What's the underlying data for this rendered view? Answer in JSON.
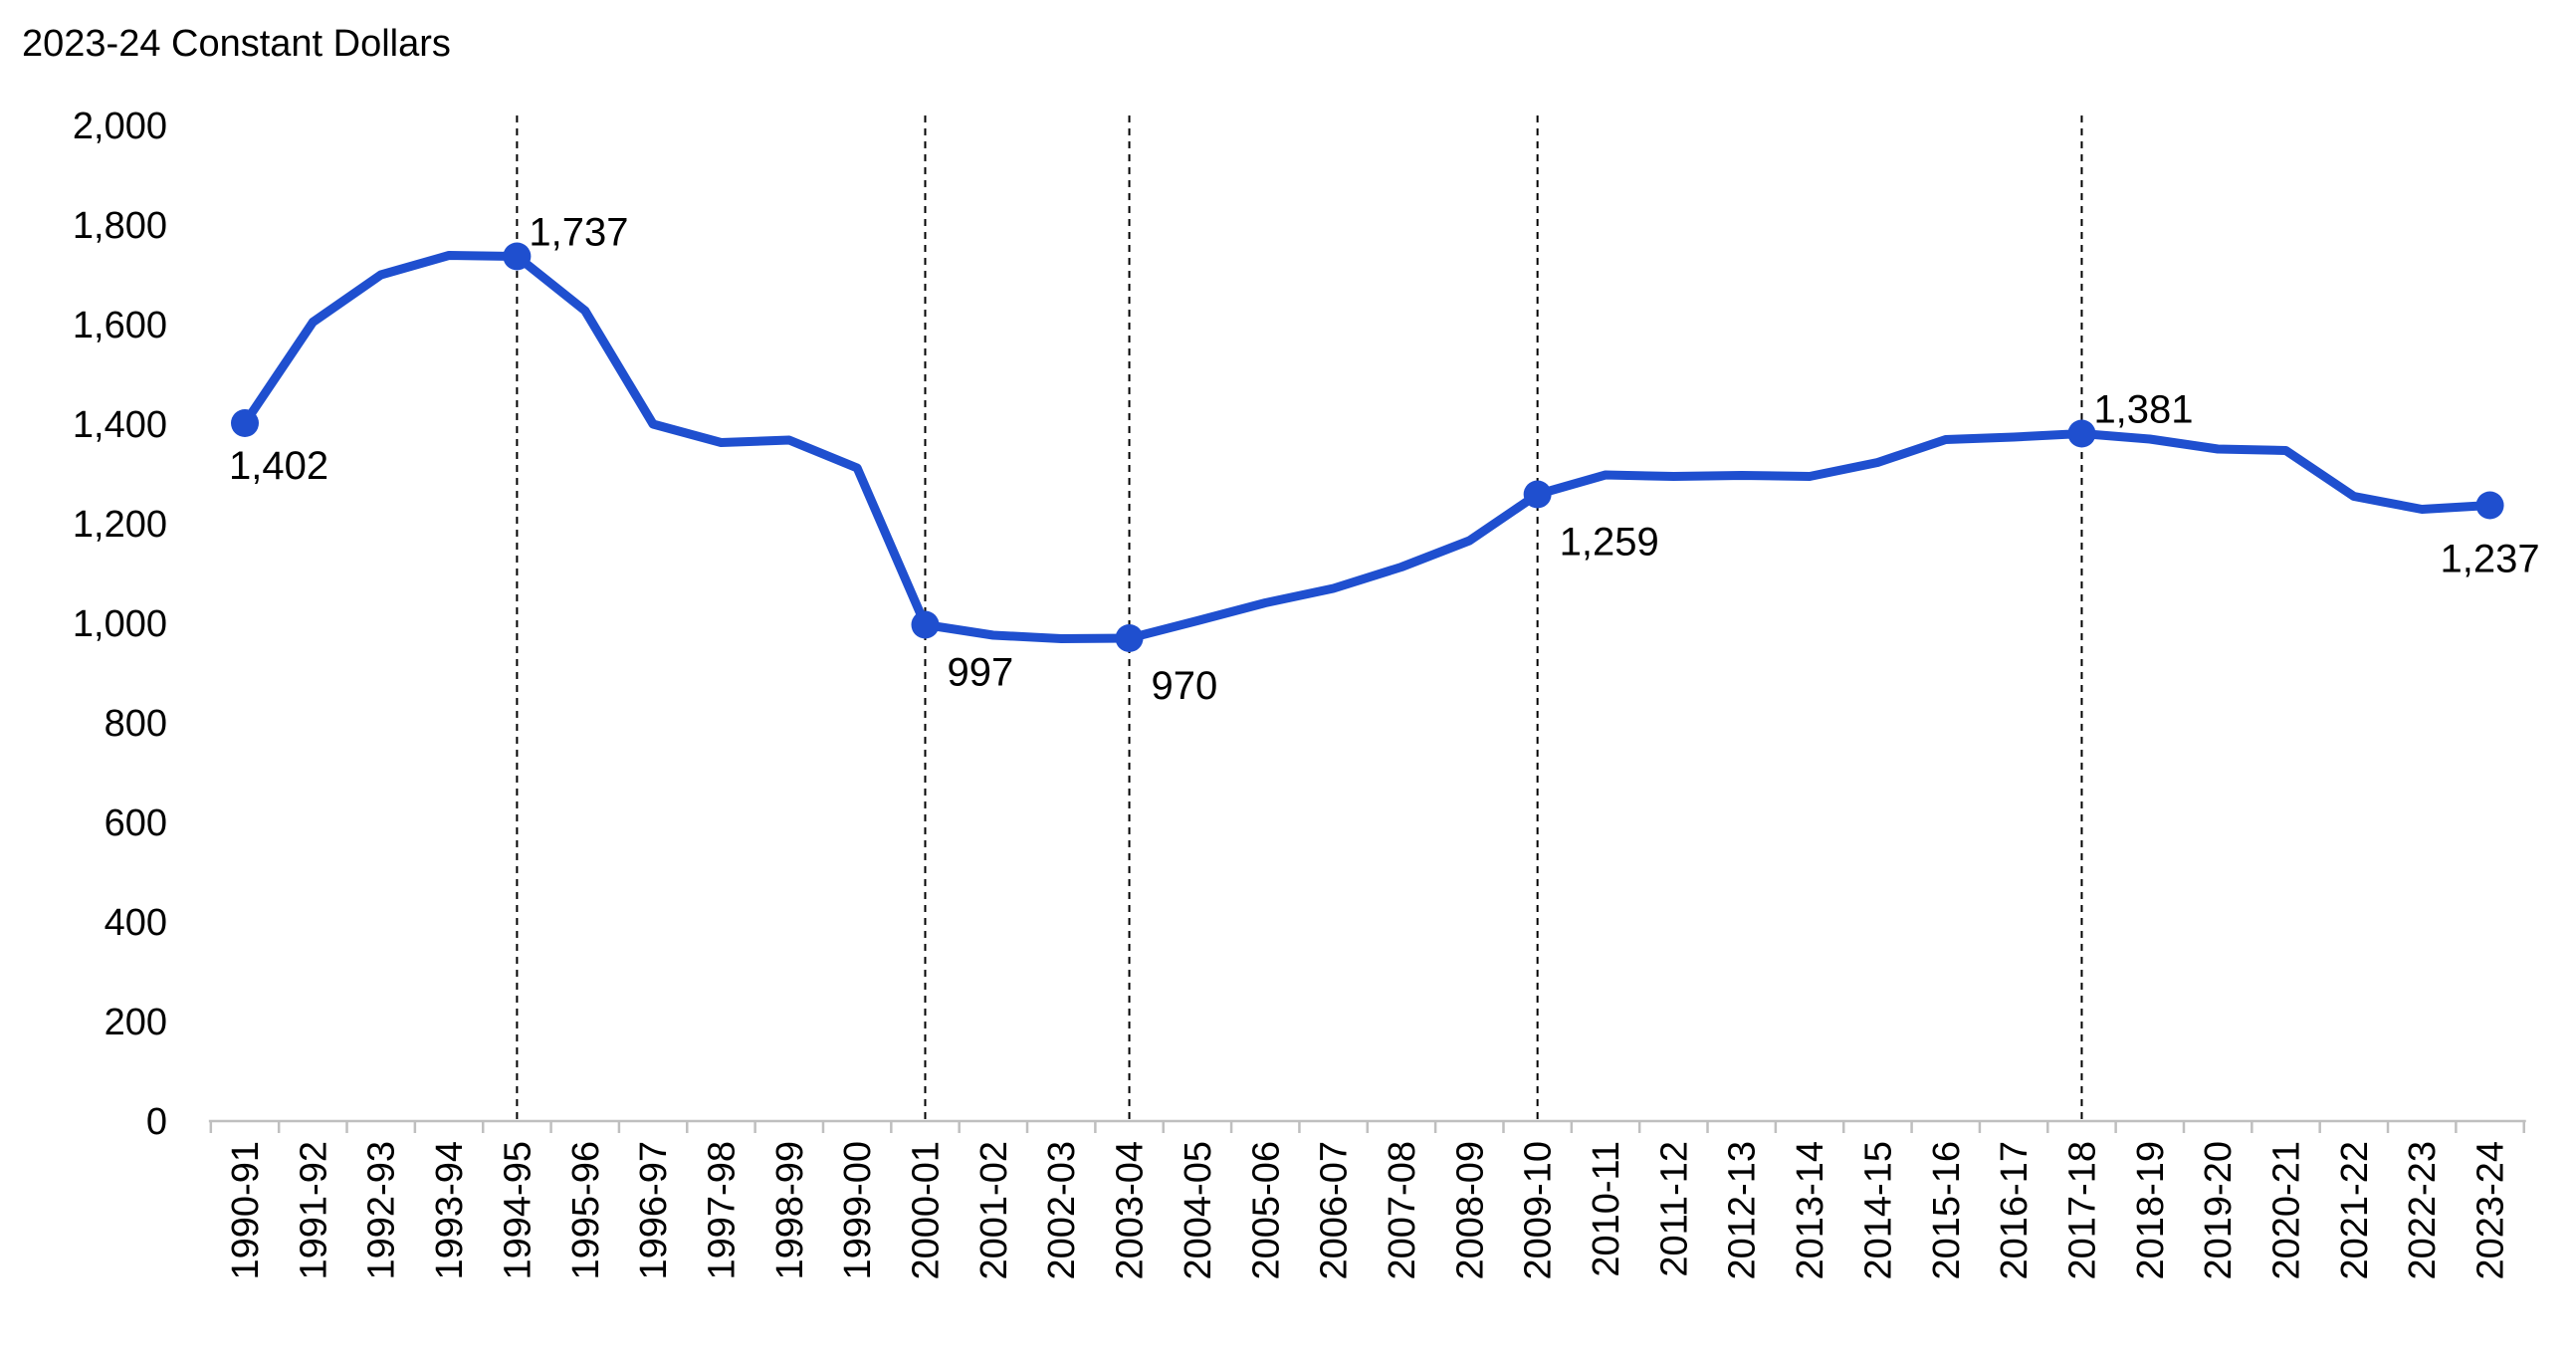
{
  "chart_data": {
    "type": "line",
    "ylabel": "2023-24 Constant Dollars",
    "ylim": [
      0,
      2000
    ],
    "yticks": [
      0,
      200,
      400,
      600,
      800,
      1000,
      1200,
      1400,
      1600,
      1800,
      2000
    ],
    "ytick_labels": [
      "0",
      "200",
      "400",
      "600",
      "800",
      "1,000",
      "1,200",
      "1,400",
      "1,600",
      "1,800",
      "2,000"
    ],
    "grid": false,
    "legend": "none",
    "categories": [
      "1990-91",
      "1991-92",
      "1992-93",
      "1993-94",
      "1994-95",
      "1995-96",
      "1996-97",
      "1997-98",
      "1998-99",
      "1999-00",
      "2000-01",
      "2001-02",
      "2002-03",
      "2003-04",
      "2004-05",
      "2005-06",
      "2006-07",
      "2007-08",
      "2008-09",
      "2009-10",
      "2010-11",
      "2011-12",
      "2012-13",
      "2013-14",
      "2014-15",
      "2015-16",
      "2016-17",
      "2017-18",
      "2018-19",
      "2019-20",
      "2020-21",
      "2021-22",
      "2022-23",
      "2023-24"
    ],
    "series": [
      {
        "values": [
          1402,
          1605,
          1700,
          1739,
          1737,
          1628,
          1400,
          1363,
          1368,
          1312,
          997,
          976,
          969,
          970,
          1005,
          1041,
          1070,
          1113,
          1166,
          1259,
          1298,
          1295,
          1297,
          1295,
          1323,
          1369,
          1374,
          1381,
          1370,
          1350,
          1347,
          1255,
          1229,
          1237
        ],
        "color": "#1f4fcf"
      }
    ],
    "markers": [
      {
        "category": "1990-91",
        "value": 1402,
        "label": "1,402",
        "label_pos": "below-right"
      },
      {
        "category": "1994-95",
        "value": 1737,
        "label": "1,737",
        "label_pos": "above-right"
      },
      {
        "category": "2000-01",
        "value": 997,
        "label": "997",
        "label_pos": "below-right"
      },
      {
        "category": "2003-04",
        "value": 970,
        "label": "970",
        "label_pos": "below-right"
      },
      {
        "category": "2009-10",
        "value": 1259,
        "label": "1,259",
        "label_pos": "below-right"
      },
      {
        "category": "2017-18",
        "value": 1381,
        "label": "1,381",
        "label_pos": "above-right"
      },
      {
        "category": "2023-24",
        "value": 1237,
        "label": "1,237",
        "label_pos": "below"
      }
    ],
    "reference_lines": [
      "1994-95",
      "2000-01",
      "2003-04",
      "2009-10",
      "2017-18"
    ],
    "colors": {
      "line": "#1f4fcf",
      "axis": "#bfbfbf",
      "reference": "#000000",
      "text": "#000000"
    }
  }
}
